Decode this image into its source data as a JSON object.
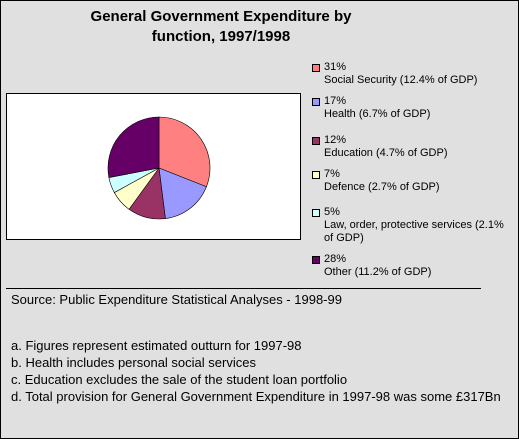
{
  "chart_data": {
    "type": "pie",
    "title": "General Government Expenditure by function, 1997/1998",
    "title_lines": [
      "General Government Expenditure by",
      "function, 1997/1998"
    ],
    "legend_position": "right",
    "slices": [
      {
        "percent_label": "31%",
        "description": "Social Security (12.4% of GDP)",
        "value": 31,
        "gdp_percent": 12.4,
        "color": "#ff8080"
      },
      {
        "percent_label": "17%",
        "description": "Health (6.7% of GDP)",
        "value": 17,
        "gdp_percent": 6.7,
        "color": "#9999ff"
      },
      {
        "percent_label": "12%",
        "description": "Education (4.7% of GDP)",
        "value": 12,
        "gdp_percent": 4.7,
        "color": "#993366"
      },
      {
        "percent_label": "7%",
        "description": "Defence (2.7% of GDP)",
        "value": 7,
        "gdp_percent": 2.7,
        "color": "#ffffcc"
      },
      {
        "percent_label": "5%",
        "description": "Law, order, protective services (2.1% of GDP)",
        "value": 5,
        "gdp_percent": 2.1,
        "color": "#ccffff"
      },
      {
        "percent_label": "28%",
        "description": "Other (11.2% of GDP)",
        "value": 28,
        "gdp_percent": 11.2,
        "color": "#660066"
      }
    ]
  },
  "source": "Source: Public Expenditure Statistical Analyses - 1998-99",
  "notes": [
    "a. Figures represent estimated outturn for 1997-98",
    "b. Health includes personal social services",
    "c. Education excludes the sale of the student loan portfolio",
    "d. Total provision for General Government Expenditure in 1997-98 was some £317Bn"
  ]
}
